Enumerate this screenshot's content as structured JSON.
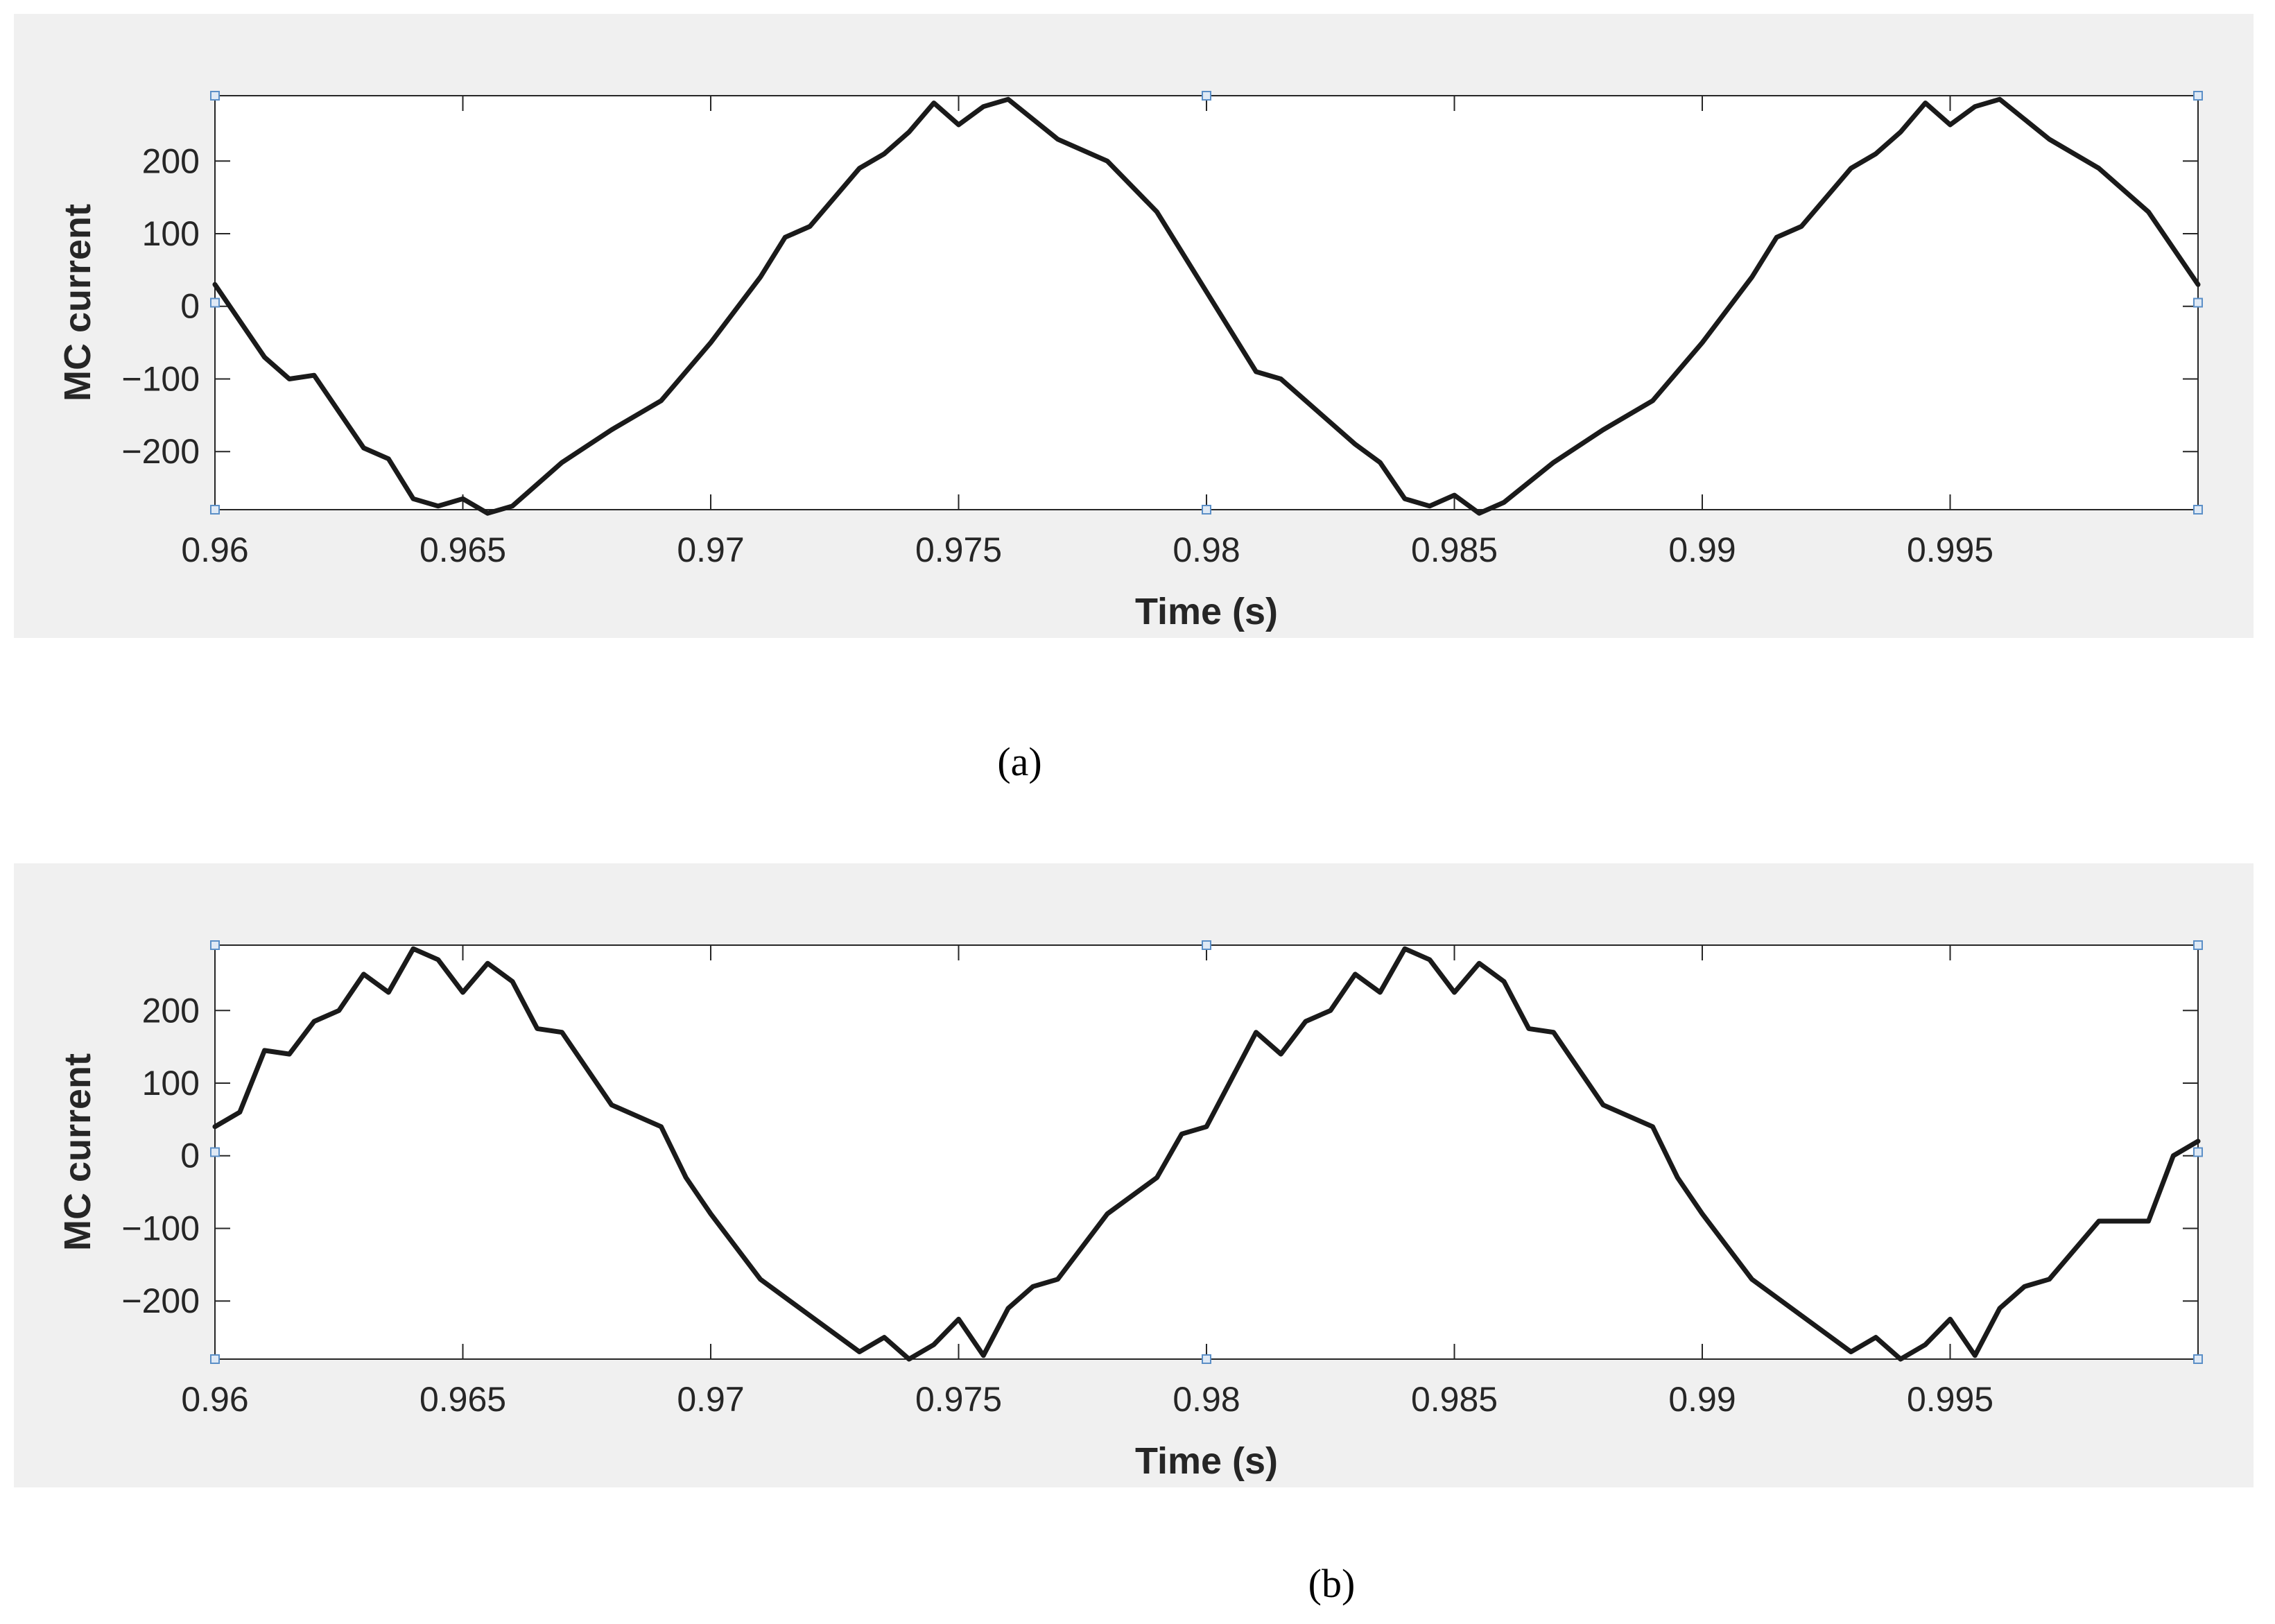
{
  "chart_data": [
    {
      "type": "line",
      "panel_label": "(a)",
      "xlabel": "Time (s)",
      "ylabel": "MC current",
      "xlim": [
        0.96,
        1.0
      ],
      "ylim": [
        -280,
        290
      ],
      "xticks": [
        0.96,
        0.965,
        0.97,
        0.975,
        0.98,
        0.985,
        0.99,
        0.995
      ],
      "xtick_labels": [
        "0.96",
        "0.965",
        "0.97",
        "0.975",
        "0.98",
        "0.985",
        "0.99",
        "0.995"
      ],
      "yticks": [
        -200,
        -100,
        0,
        100,
        200
      ],
      "ytick_labels": [
        "−200",
        "−100",
        "0",
        "100",
        "200"
      ],
      "line_color": "#1a1a1a",
      "series": [
        {
          "x": [
            0.96,
            0.961,
            0.9615,
            0.962,
            0.963,
            0.9635,
            0.964,
            0.9645,
            0.965,
            0.9655,
            0.966,
            0.967,
            0.968,
            0.969,
            0.97,
            0.971,
            0.9715,
            0.972,
            0.973,
            0.9735,
            0.974,
            0.9745,
            0.975,
            0.9755,
            0.976,
            0.977,
            0.978,
            0.979,
            0.98,
            0.981,
            0.9815,
            0.982,
            0.983,
            0.9835,
            0.984,
            0.9845,
            0.985,
            0.9855,
            0.986,
            0.987,
            0.988,
            0.989,
            0.99,
            0.991,
            0.9915,
            0.992,
            0.993,
            0.9935,
            0.994,
            0.9945,
            0.995,
            0.9955,
            0.996,
            0.997,
            0.998,
            0.999,
            1.0
          ],
          "y": [
            30,
            -70,
            -100,
            -95,
            -195,
            -210,
            -265,
            -275,
            -265,
            -285,
            -275,
            -215,
            -170,
            -130,
            -50,
            40,
            95,
            110,
            190,
            210,
            240,
            280,
            250,
            275,
            285,
            230,
            200,
            130,
            20,
            -90,
            -100,
            -130,
            -190,
            -215,
            -265,
            -275,
            -260,
            -285,
            -270,
            -215,
            -170,
            -130,
            -50,
            40,
            95,
            110,
            190,
            210,
            240,
            280,
            250,
            275,
            285,
            230,
            190,
            130,
            30
          ]
        }
      ]
    },
    {
      "type": "line",
      "panel_label": "(b)",
      "xlabel": "Time (s)",
      "ylabel": "MC current",
      "xlim": [
        0.96,
        1.0
      ],
      "ylim": [
        -280,
        290
      ],
      "xticks": [
        0.96,
        0.965,
        0.97,
        0.975,
        0.98,
        0.985,
        0.99,
        0.995
      ],
      "xtick_labels": [
        "0.96",
        "0.965",
        "0.97",
        "0.975",
        "0.98",
        "0.985",
        "0.99",
        "0.995"
      ],
      "yticks": [
        -200,
        -100,
        0,
        100,
        200
      ],
      "ytick_labels": [
        "−200",
        "−100",
        "0",
        "100",
        "200"
      ],
      "line_color": "#1a1a1a",
      "series": [
        {
          "x": [
            0.96,
            0.9605,
            0.961,
            0.9615,
            0.962,
            0.9625,
            0.963,
            0.9635,
            0.964,
            0.9645,
            0.965,
            0.9655,
            0.966,
            0.9665,
            0.967,
            0.968,
            0.969,
            0.9695,
            0.97,
            0.971,
            0.972,
            0.973,
            0.9735,
            0.974,
            0.9745,
            0.975,
            0.9755,
            0.976,
            0.9765,
            0.977,
            0.978,
            0.979,
            0.9795,
            0.98,
            0.981,
            0.9815,
            0.982,
            0.9825,
            0.983,
            0.9835,
            0.984,
            0.9845,
            0.985,
            0.9855,
            0.986,
            0.9865,
            0.987,
            0.988,
            0.989,
            0.9895,
            0.99,
            0.991,
            0.992,
            0.993,
            0.9935,
            0.994,
            0.9945,
            0.995,
            0.9955,
            0.996,
            0.9965,
            0.997,
            0.998,
            0.999,
            0.9995,
            1.0
          ],
          "y": [
            40,
            60,
            145,
            140,
            185,
            200,
            250,
            225,
            285,
            270,
            225,
            265,
            240,
            175,
            170,
            70,
            40,
            -30,
            -80,
            -170,
            -220,
            -270,
            -250,
            -280,
            -260,
            -225,
            -275,
            -210,
            -180,
            -170,
            -80,
            -30,
            30,
            40,
            170,
            140,
            185,
            200,
            250,
            225,
            285,
            270,
            225,
            265,
            240,
            175,
            170,
            70,
            40,
            -30,
            -80,
            -170,
            -220,
            -270,
            -250,
            -280,
            -260,
            -225,
            -275,
            -210,
            -180,
            -170,
            -90,
            -90,
            0,
            20
          ]
        }
      ]
    }
  ]
}
